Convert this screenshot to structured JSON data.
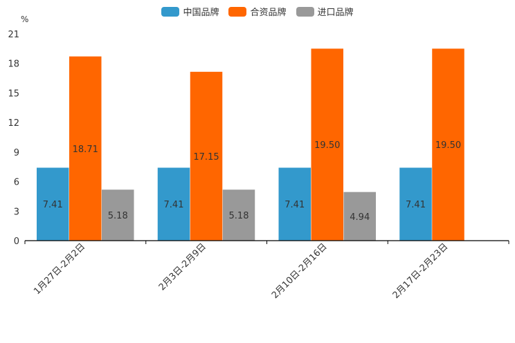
{
  "chart_data": {
    "type": "bar",
    "unit": "%",
    "categories": [
      "1月27日-2月2日",
      "2月3日-2月9日",
      "2月10日-2月16日",
      "2月17日-2月23日"
    ],
    "series": [
      {
        "name": "中国品牌",
        "color": "#3399cc",
        "values": [
          7.41,
          7.41,
          7.41,
          7.41
        ],
        "labels": [
          "7.41",
          "7.41",
          "7.41",
          "7.41"
        ]
      },
      {
        "name": "合资品牌",
        "color": "#ff6600",
        "values": [
          18.71,
          17.15,
          19.5,
          19.5
        ],
        "labels": [
          "18.71",
          "17.15",
          "19.50",
          "19.50"
        ]
      },
      {
        "name": "进口品牌",
        "color": "#999999",
        "values": [
          5.18,
          5.18,
          4.94,
          null
        ],
        "labels": [
          "5.18",
          "5.18",
          "4.94",
          null
        ]
      }
    ],
    "yticks": [
      "0",
      "3",
      "6",
      "9",
      "12",
      "15",
      "18",
      "21"
    ],
    "ylim": [
      0,
      21
    ],
    "legend_position": "top-center"
  }
}
